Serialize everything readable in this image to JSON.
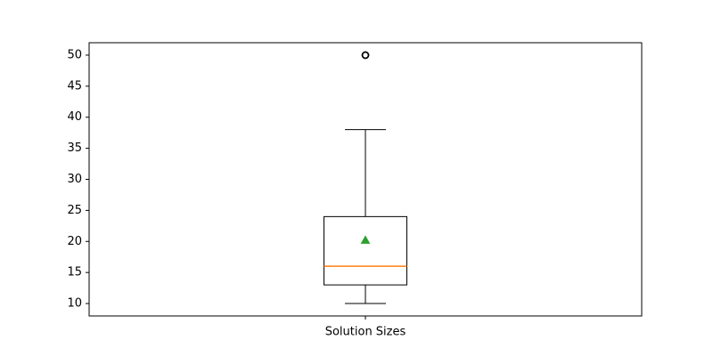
{
  "chart_data": {
    "type": "box",
    "categories": [
      "Solution Sizes"
    ],
    "series": [
      {
        "whisker_low": 10,
        "q1": 13,
        "median": 16,
        "q3": 24,
        "whisker_high": 38,
        "mean": 20.2,
        "outliers": [
          50,
          50,
          50
        ]
      }
    ],
    "yticks": [
      10,
      15,
      20,
      25,
      30,
      35,
      40,
      45,
      50
    ],
    "ylim": [
      8.0,
      52.0
    ],
    "title": "",
    "xlabel": "",
    "ylabel": "",
    "grid": false,
    "colors": {
      "box": "#000000",
      "median": "#ff7f0e",
      "mean": "#2ca02c",
      "outlier": "#000000"
    }
  }
}
